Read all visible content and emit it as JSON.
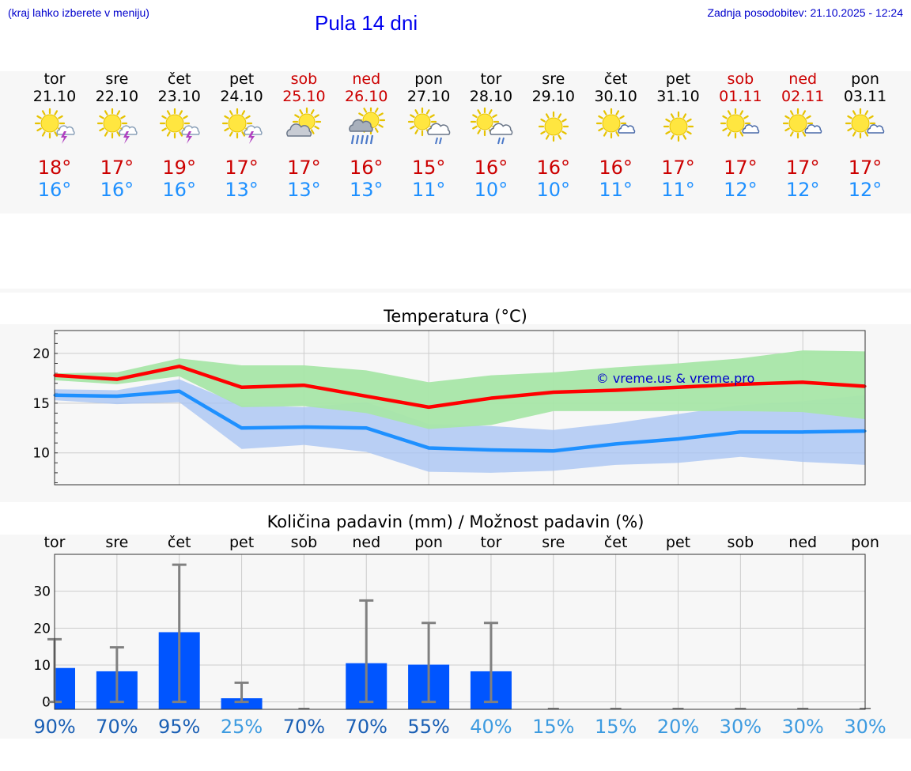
{
  "header": {
    "hint": "(kraj lahko izberete v meniju)",
    "title": "Pula 14 dni",
    "updated": "Zadnja posodobitev: 21.10.2025 - 12:24"
  },
  "days": [
    {
      "name": "tor",
      "date": "21.10",
      "weekend": false,
      "icon": "sun-thunderstorm-icon",
      "max": "18°",
      "min": "16°"
    },
    {
      "name": "sre",
      "date": "22.10",
      "weekend": false,
      "icon": "sun-thunderstorm-icon",
      "max": "17°",
      "min": "16°"
    },
    {
      "name": "čet",
      "date": "23.10",
      "weekend": false,
      "icon": "sun-thunderstorm-icon",
      "max": "19°",
      "min": "16°"
    },
    {
      "name": "pet",
      "date": "24.10",
      "weekend": false,
      "icon": "sun-thunderstorm-icon",
      "max": "17°",
      "min": "13°"
    },
    {
      "name": "sob",
      "date": "25.10",
      "weekend": true,
      "icon": "sun-cloud-icon",
      "max": "17°",
      "min": "13°"
    },
    {
      "name": "ned",
      "date": "26.10",
      "weekend": true,
      "icon": "sun-heavy-rain-icon",
      "max": "16°",
      "min": "13°"
    },
    {
      "name": "pon",
      "date": "27.10",
      "weekend": false,
      "icon": "sun-cloud-rain-icon",
      "max": "15°",
      "min": "11°"
    },
    {
      "name": "tor",
      "date": "28.10",
      "weekend": false,
      "icon": "sun-cloud-rain-icon",
      "max": "16°",
      "min": "10°"
    },
    {
      "name": "sre",
      "date": "29.10",
      "weekend": false,
      "icon": "sun-icon",
      "max": "16°",
      "min": "10°"
    },
    {
      "name": "čet",
      "date": "30.10",
      "weekend": false,
      "icon": "sun-small-cloud-icon",
      "max": "16°",
      "min": "11°"
    },
    {
      "name": "pet",
      "date": "31.10",
      "weekend": false,
      "icon": "sun-icon",
      "max": "17°",
      "min": "11°"
    },
    {
      "name": "sob",
      "date": "01.11",
      "weekend": true,
      "icon": "sun-small-cloud-icon",
      "max": "17°",
      "min": "12°"
    },
    {
      "name": "ned",
      "date": "02.11",
      "weekend": true,
      "icon": "sun-small-cloud-icon",
      "max": "17°",
      "min": "12°"
    },
    {
      "name": "pon",
      "date": "03.11",
      "weekend": false,
      "icon": "sun-small-cloud-icon",
      "max": "17°",
      "min": "12°"
    }
  ],
  "colors": {
    "max": "#ff0000",
    "min": "#1e90ff",
    "max_band": "#a8e6a8",
    "min_band": "#a9c4f2",
    "bar": "#0055ff",
    "error": "#808080",
    "prob_high": "#1a5fb4",
    "prob_low": "#3d9be0"
  },
  "chart_data": [
    {
      "type": "line",
      "title": "Temperatura (°C)",
      "watermark": "© vreme.us & vreme.pro",
      "ylim": [
        6.8,
        22.3
      ],
      "yticks": [
        10,
        15,
        20
      ],
      "x": [
        0,
        1,
        2,
        3,
        4,
        5,
        6,
        7,
        8,
        9,
        10,
        11,
        12,
        13
      ],
      "series": [
        {
          "name": "max",
          "values": [
            17.8,
            17.4,
            18.7,
            16.6,
            16.8,
            15.7,
            14.6,
            15.5,
            16.1,
            16.3,
            16.6,
            16.9,
            17.1,
            16.7
          ],
          "low": [
            17.3,
            16.9,
            17.7,
            14.6,
            14.7,
            14.0,
            12.4,
            12.8,
            14.2,
            14.2,
            14.2,
            14.2,
            14.1,
            13.4
          ],
          "high": [
            18.0,
            18.1,
            19.5,
            18.8,
            18.8,
            18.3,
            17.1,
            17.8,
            18.1,
            18.6,
            19.0,
            19.5,
            20.3,
            20.2
          ]
        },
        {
          "name": "min",
          "values": [
            15.8,
            15.7,
            16.2,
            12.5,
            12.6,
            12.5,
            10.5,
            10.3,
            10.2,
            10.9,
            11.4,
            12.1,
            12.1,
            12.2
          ],
          "low": [
            15.3,
            14.9,
            15.1,
            10.4,
            10.8,
            10.1,
            8.1,
            8.0,
            8.2,
            8.8,
            9.0,
            9.6,
            9.1,
            8.8
          ],
          "high": [
            16.4,
            16.3,
            17.4,
            14.8,
            14.6,
            15.1,
            12.9,
            12.7,
            12.3,
            13.0,
            13.9,
            14.8,
            15.2,
            15.8
          ]
        }
      ]
    },
    {
      "type": "bar",
      "title": "Količina padavin (mm) / Možnost padavin (%)",
      "categories": [
        "tor",
        "sre",
        "čet",
        "pet",
        "sob",
        "ned",
        "pon",
        "tor",
        "sre",
        "čet",
        "pet",
        "sob",
        "ned",
        "pon"
      ],
      "ylim": [
        -2,
        40
      ],
      "yticks": [
        0,
        10,
        20,
        30
      ],
      "values": [
        9.2,
        8.3,
        18.9,
        1.0,
        0,
        10.5,
        10.1,
        8.3,
        0,
        0,
        0,
        0,
        0,
        0
      ],
      "error_high": [
        17,
        14.8,
        37.2,
        5.2,
        0,
        27.5,
        21.4,
        21.4,
        0,
        0,
        0,
        0,
        0,
        0
      ],
      "error_low": [
        0,
        0,
        0,
        0,
        0,
        0,
        0,
        0,
        0,
        0,
        0,
        0,
        0,
        0
      ],
      "probability": [
        "90%",
        "70%",
        "95%",
        "25%",
        "70%",
        "70%",
        "55%",
        "40%",
        "15%",
        "15%",
        "20%",
        "30%",
        "30%",
        "30%"
      ]
    }
  ]
}
